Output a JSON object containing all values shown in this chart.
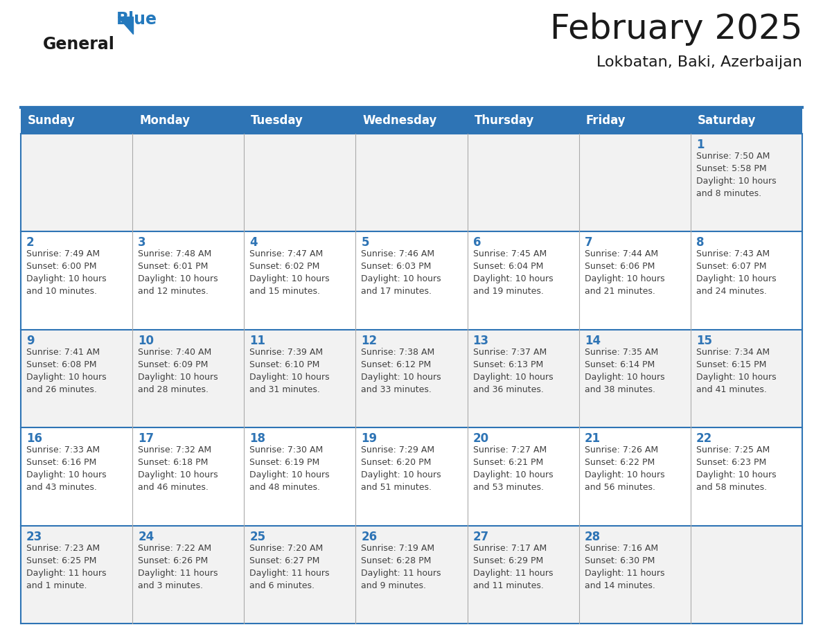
{
  "title": "February 2025",
  "subtitle": "Lokbatan, Baki, Azerbaijan",
  "header_bg": "#2E74B5",
  "header_text_color": "#FFFFFF",
  "row_bg_even": "#F2F2F2",
  "row_bg_odd": "#FFFFFF",
  "cell_border_color": "#2E74B5",
  "day_number_color": "#2E74B5",
  "info_text_color": "#404040",
  "days_of_week": [
    "Sunday",
    "Monday",
    "Tuesday",
    "Wednesday",
    "Thursday",
    "Friday",
    "Saturday"
  ],
  "weeks": [
    [
      {
        "day": null,
        "info": null
      },
      {
        "day": null,
        "info": null
      },
      {
        "day": null,
        "info": null
      },
      {
        "day": null,
        "info": null
      },
      {
        "day": null,
        "info": null
      },
      {
        "day": null,
        "info": null
      },
      {
        "day": 1,
        "info": "Sunrise: 7:50 AM\nSunset: 5:58 PM\nDaylight: 10 hours\nand 8 minutes."
      }
    ],
    [
      {
        "day": 2,
        "info": "Sunrise: 7:49 AM\nSunset: 6:00 PM\nDaylight: 10 hours\nand 10 minutes."
      },
      {
        "day": 3,
        "info": "Sunrise: 7:48 AM\nSunset: 6:01 PM\nDaylight: 10 hours\nand 12 minutes."
      },
      {
        "day": 4,
        "info": "Sunrise: 7:47 AM\nSunset: 6:02 PM\nDaylight: 10 hours\nand 15 minutes."
      },
      {
        "day": 5,
        "info": "Sunrise: 7:46 AM\nSunset: 6:03 PM\nDaylight: 10 hours\nand 17 minutes."
      },
      {
        "day": 6,
        "info": "Sunrise: 7:45 AM\nSunset: 6:04 PM\nDaylight: 10 hours\nand 19 minutes."
      },
      {
        "day": 7,
        "info": "Sunrise: 7:44 AM\nSunset: 6:06 PM\nDaylight: 10 hours\nand 21 minutes."
      },
      {
        "day": 8,
        "info": "Sunrise: 7:43 AM\nSunset: 6:07 PM\nDaylight: 10 hours\nand 24 minutes."
      }
    ],
    [
      {
        "day": 9,
        "info": "Sunrise: 7:41 AM\nSunset: 6:08 PM\nDaylight: 10 hours\nand 26 minutes."
      },
      {
        "day": 10,
        "info": "Sunrise: 7:40 AM\nSunset: 6:09 PM\nDaylight: 10 hours\nand 28 minutes."
      },
      {
        "day": 11,
        "info": "Sunrise: 7:39 AM\nSunset: 6:10 PM\nDaylight: 10 hours\nand 31 minutes."
      },
      {
        "day": 12,
        "info": "Sunrise: 7:38 AM\nSunset: 6:12 PM\nDaylight: 10 hours\nand 33 minutes."
      },
      {
        "day": 13,
        "info": "Sunrise: 7:37 AM\nSunset: 6:13 PM\nDaylight: 10 hours\nand 36 minutes."
      },
      {
        "day": 14,
        "info": "Sunrise: 7:35 AM\nSunset: 6:14 PM\nDaylight: 10 hours\nand 38 minutes."
      },
      {
        "day": 15,
        "info": "Sunrise: 7:34 AM\nSunset: 6:15 PM\nDaylight: 10 hours\nand 41 minutes."
      }
    ],
    [
      {
        "day": 16,
        "info": "Sunrise: 7:33 AM\nSunset: 6:16 PM\nDaylight: 10 hours\nand 43 minutes."
      },
      {
        "day": 17,
        "info": "Sunrise: 7:32 AM\nSunset: 6:18 PM\nDaylight: 10 hours\nand 46 minutes."
      },
      {
        "day": 18,
        "info": "Sunrise: 7:30 AM\nSunset: 6:19 PM\nDaylight: 10 hours\nand 48 minutes."
      },
      {
        "day": 19,
        "info": "Sunrise: 7:29 AM\nSunset: 6:20 PM\nDaylight: 10 hours\nand 51 minutes."
      },
      {
        "day": 20,
        "info": "Sunrise: 7:27 AM\nSunset: 6:21 PM\nDaylight: 10 hours\nand 53 minutes."
      },
      {
        "day": 21,
        "info": "Sunrise: 7:26 AM\nSunset: 6:22 PM\nDaylight: 10 hours\nand 56 minutes."
      },
      {
        "day": 22,
        "info": "Sunrise: 7:25 AM\nSunset: 6:23 PM\nDaylight: 10 hours\nand 58 minutes."
      }
    ],
    [
      {
        "day": 23,
        "info": "Sunrise: 7:23 AM\nSunset: 6:25 PM\nDaylight: 11 hours\nand 1 minute."
      },
      {
        "day": 24,
        "info": "Sunrise: 7:22 AM\nSunset: 6:26 PM\nDaylight: 11 hours\nand 3 minutes."
      },
      {
        "day": 25,
        "info": "Sunrise: 7:20 AM\nSunset: 6:27 PM\nDaylight: 11 hours\nand 6 minutes."
      },
      {
        "day": 26,
        "info": "Sunrise: 7:19 AM\nSunset: 6:28 PM\nDaylight: 11 hours\nand 9 minutes."
      },
      {
        "day": 27,
        "info": "Sunrise: 7:17 AM\nSunset: 6:29 PM\nDaylight: 11 hours\nand 11 minutes."
      },
      {
        "day": 28,
        "info": "Sunrise: 7:16 AM\nSunset: 6:30 PM\nDaylight: 11 hours\nand 14 minutes."
      },
      {
        "day": null,
        "info": null
      }
    ]
  ],
  "logo_general_color": "#1a1a1a",
  "logo_blue_color": "#2479BD",
  "title_fontsize": 36,
  "subtitle_fontsize": 16,
  "header_fontsize": 12,
  "day_num_fontsize": 12,
  "info_fontsize": 9.0
}
